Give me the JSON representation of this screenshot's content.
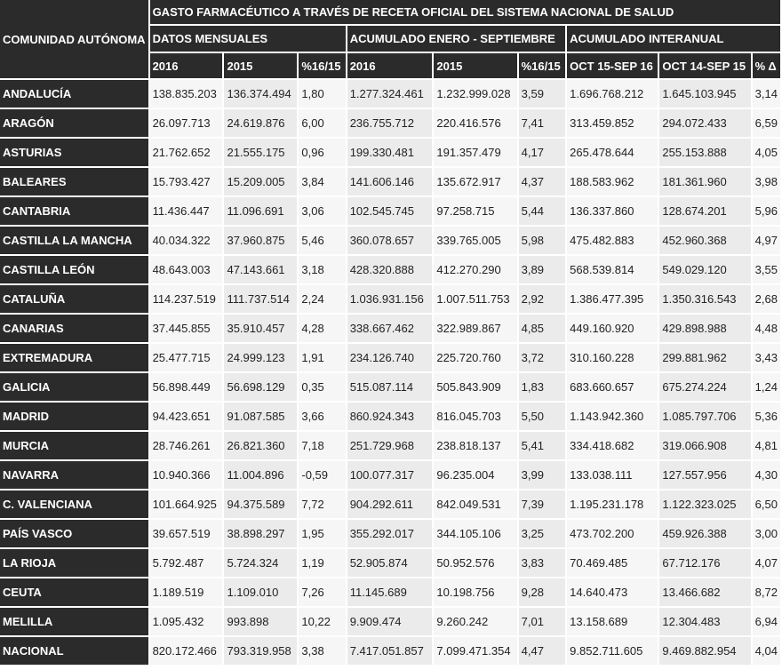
{
  "header": {
    "title": "GASTO FARMACÉUTICO A TRAVÉS DE RECETA OFICIAL DEL SISTEMA NACIONAL DE SALUD",
    "region_label": "COMUNIDAD AUTÓNOMA",
    "groups": [
      "DATOS MENSUALES",
      "ACUMULADO ENERO - SEPTIEMBRE",
      "ACUMULADO INTERANUAL"
    ],
    "columns": [
      "2016",
      "2015",
      "%16/15",
      "2016",
      "2015",
      "%16/15",
      "OCT 15-SEP 16",
      "OCT 14-SEP 15",
      "% Δ"
    ]
  },
  "table": {
    "rows": [
      [
        "ANDALUCÍA",
        "138.835.203",
        "136.374.494",
        "1,80",
        "1.277.324.461",
        "1.232.999.028",
        "3,59",
        "1.696.768.212",
        "1.645.103.945",
        "3,14"
      ],
      [
        "ARAGÓN",
        "26.097.713",
        "24.619.876",
        "6,00",
        "236.755.712",
        "220.416.576",
        "7,41",
        "313.459.852",
        "294.072.433",
        "6,59"
      ],
      [
        "ASTURIAS",
        "21.762.652",
        "21.555.175",
        "0,96",
        "199.330.481",
        "191.357.479",
        "4,17",
        "265.478.644",
        "255.153.888",
        "4,05"
      ],
      [
        "BALEARES",
        "15.793.427",
        "15.209.005",
        "3,84",
        "141.606.146",
        "135.672.917",
        "4,37",
        "188.583.962",
        "181.361.960",
        "3,98"
      ],
      [
        "CANTABRIA",
        "11.436.447",
        "11.096.691",
        "3,06",
        "102.545.745",
        "97.258.715",
        "5,44",
        "136.337.860",
        "128.674.201",
        "5,96"
      ],
      [
        "CASTILLA LA MANCHA",
        "40.034.322",
        "37.960.875",
        "5,46",
        "360.078.657",
        "339.765.005",
        "5,98",
        "475.482.883",
        "452.960.368",
        "4,97"
      ],
      [
        "CASTILLA LEÓN",
        "48.643.003",
        "47.143.661",
        "3,18",
        "428.320.888",
        "412.270.290",
        "3,89",
        "568.539.814",
        "549.029.120",
        "3,55"
      ],
      [
        "CATALUÑA",
        "114.237.519",
        "111.737.514",
        "2,24",
        "1.036.931.156",
        "1.007.511.753",
        "2,92",
        "1.386.477.395",
        "1.350.316.543",
        "2,68"
      ],
      [
        "CANARIAS",
        "37.445.855",
        "35.910.457",
        "4,28",
        "338.667.462",
        "322.989.867",
        "4,85",
        "449.160.920",
        "429.898.988",
        "4,48"
      ],
      [
        "EXTREMADURA",
        "25.477.715",
        "24.999.123",
        "1,91",
        "234.126.740",
        "225.720.760",
        "3,72",
        "310.160.228",
        "299.881.962",
        "3,43"
      ],
      [
        "GALICIA",
        "56.898.449",
        "56.698.129",
        "0,35",
        "515.087.114",
        "505.843.909",
        "1,83",
        "683.660.657",
        "675.274.224",
        "1,24"
      ],
      [
        "MADRID",
        "94.423.651",
        "91.087.585",
        "3,66",
        "860.924.343",
        "816.045.703",
        "5,50",
        "1.143.942.360",
        "1.085.797.706",
        "5,36"
      ],
      [
        "MURCIA",
        "28.746.261",
        "26.821.360",
        "7,18",
        "251.729.968",
        "238.818.137",
        "5,41",
        "334.418.682",
        "319.066.908",
        "4,81"
      ],
      [
        "NAVARRA",
        "10.940.366",
        "11.004.896",
        "-0,59",
        "100.077.317",
        "96.235.004",
        "3,99",
        "133.038.111",
        "127.557.956",
        "4,30"
      ],
      [
        "C. VALENCIANA",
        "101.664.925",
        "94.375.589",
        "7,72",
        "904.292.611",
        "842.049.531",
        "7,39",
        "1.195.231.178",
        "1.122.323.025",
        "6,50"
      ],
      [
        "PAÍS VASCO",
        "39.657.519",
        "38.898.297",
        "1,95",
        "355.292.017",
        "344.105.106",
        "3,25",
        "473.702.200",
        "459.926.388",
        "3,00"
      ],
      [
        "LA RIOJA",
        "5.792.487",
        "5.724.324",
        "1,19",
        "52.905.874",
        "50.952.576",
        "3,83",
        "70.469.485",
        "67.712.176",
        "4,07"
      ],
      [
        "CEUTA",
        "1.189.519",
        "1.109.010",
        "7,26",
        "11.145.689",
        "10.198.756",
        "9,28",
        "14.640.473",
        "13.466.682",
        "8,72"
      ],
      [
        "MELILLA",
        "1.095.432",
        "993.898",
        "10,22",
        "9.909.474",
        "9.260.242",
        "7,01",
        "13.158.689",
        "12.304.483",
        "6,94"
      ],
      [
        "NACIONAL",
        "820.172.466",
        "793.319.958",
        "3,38",
        "7.417.051.857",
        "7.099.471.354",
        "4,47",
        "9.852.711.605",
        "9.469.882.954",
        "4,04"
      ]
    ]
  }
}
